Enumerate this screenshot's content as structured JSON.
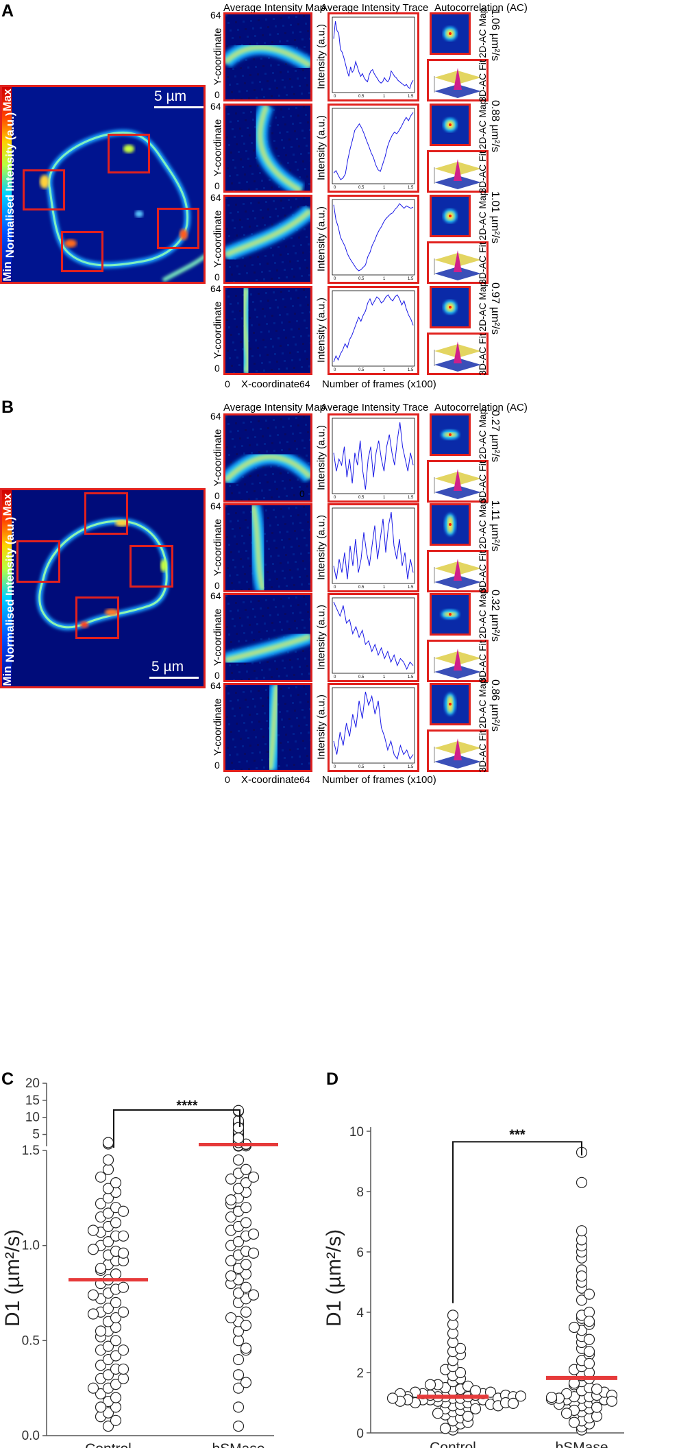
{
  "panels": {
    "A": {
      "letter": "A",
      "scale_label": "5 µm",
      "colorbar": {
        "min": "Min",
        "label": "Normalised Intensity (a.u.)",
        "max": "Max"
      },
      "rows": [
        {
          "diffusion": "1.06 µm²/s",
          "trace": [
            7.9,
            9.2,
            8.5,
            8.3,
            7.1,
            6.9,
            6.5,
            6.0,
            5.5,
            5.1,
            5.8,
            5.4,
            5.6,
            6.2,
            5.8,
            5.4,
            5.1,
            5.3,
            5.0,
            4.8,
            4.7,
            5.2,
            5.5,
            5.6,
            5.3,
            5.1,
            4.9,
            4.7,
            4.6,
            4.7,
            5.0,
            4.8,
            4.7,
            4.9,
            5.5,
            5.3,
            5.1,
            5.0,
            4.8,
            4.7,
            4.6,
            4.5,
            4.4,
            4.5,
            4.3,
            4.2,
            4.6,
            4.8
          ]
        },
        {
          "diffusion": "0.88 µm²/s",
          "trace": [
            9.6,
            9.9,
            9.3,
            8.8,
            9.0,
            9.5,
            11.2,
            12.5,
            13.6,
            14.8,
            15.2,
            15.6,
            15.1,
            14.4,
            13.6,
            12.9,
            12.1,
            11.5,
            10.6,
            10.0,
            9.8,
            10.7,
            11.6,
            12.8,
            13.6,
            14.2,
            14.6,
            14.4,
            14.8,
            15.3,
            15.9,
            16.4,
            16.0,
            16.6,
            17.0
          ]
        },
        {
          "diffusion": "1.01 µm²/s",
          "trace": [
            8.8,
            7.5,
            6.9,
            6.0,
            5.6,
            5.2,
            4.6,
            4.2,
            3.9,
            3.6,
            3.3,
            3.1,
            3.2,
            3.4,
            3.6,
            4.3,
            4.7,
            5.3,
            5.7,
            6.2,
            6.6,
            6.9,
            7.3,
            7.6,
            7.8,
            8.0,
            8.1,
            8.4,
            8.6,
            8.9,
            8.7,
            8.5,
            8.7,
            8.6,
            8.5,
            8.6
          ]
        },
        {
          "diffusion": "0.97 µm²/s",
          "trace": [
            4.5,
            4.8,
            4.6,
            4.9,
            5.1,
            5.4,
            5.2,
            5.6,
            5.8,
            6.1,
            6.4,
            6.7,
            6.5,
            6.8,
            7.0,
            7.4,
            7.6,
            7.3,
            7.5,
            7.7,
            7.6,
            7.4,
            7.5,
            7.7,
            7.8,
            7.6,
            7.5,
            7.7,
            7.8,
            7.6,
            7.3,
            7.5,
            7.1,
            6.8,
            6.6,
            6.3
          ]
        }
      ]
    },
    "B": {
      "letter": "B",
      "scale_label": "5 µm",
      "colorbar": {
        "min": "Min",
        "label": "Normalised Intensity (a.u.)",
        "max": "Max"
      },
      "rows": [
        {
          "diffusion": "0.27 µm²/s",
          "trace": [
            4.1,
            3.8,
            4.0,
            3.9,
            4.2,
            3.7,
            4.0,
            3.6,
            4.1,
            3.9,
            4.3,
            3.8,
            3.5,
            4.0,
            4.2,
            3.7,
            4.1,
            4.3,
            4.0,
            3.8,
            4.2,
            4.4,
            4.1,
            3.9,
            4.3,
            4.6,
            4.2,
            4.0,
            3.8,
            4.1,
            3.9
          ]
        },
        {
          "diffusion": "1.11 µm²/s",
          "trace": [
            3.2,
            3.0,
            3.3,
            3.1,
            3.4,
            3.0,
            3.5,
            3.2,
            3.6,
            3.1,
            3.3,
            3.7,
            3.4,
            3.2,
            3.5,
            3.8,
            3.3,
            3.6,
            3.9,
            3.4,
            3.8,
            4.0,
            3.5,
            3.3,
            3.6,
            3.2,
            3.4,
            3.0,
            3.3,
            3.1
          ]
        },
        {
          "diffusion": "0.32 µm²/s",
          "trace": [
            8.0,
            7.8,
            7.6,
            7.9,
            7.4,
            7.5,
            7.1,
            7.3,
            7.0,
            7.2,
            6.8,
            6.9,
            6.6,
            6.8,
            6.5,
            6.7,
            6.4,
            6.6,
            6.3,
            6.5,
            6.2,
            6.4,
            6.3,
            6.1,
            6.3,
            6.2
          ]
        },
        {
          "diffusion": "0.86 µm²/s",
          "trace": [
            3.3,
            3.0,
            3.5,
            3.2,
            3.7,
            3.4,
            3.9,
            3.6,
            4.2,
            3.8,
            4.4,
            4.1,
            4.3,
            3.9,
            4.2,
            3.6,
            3.4,
            3.1,
            3.3,
            3.0,
            2.9,
            3.2,
            3.0,
            3.1,
            2.9,
            3.0
          ]
        }
      ]
    }
  },
  "column_headers": {
    "map": "Average Intensity Map",
    "trace": "Average Intensity Trace",
    "ac": "Autocorrelation (AC)"
  },
  "axis_labels": {
    "y": "Y-coordinate",
    "x": "X-coordinate",
    "intensity": "Intensity (a.u.)",
    "frames": "Number of frames (x100)",
    "map_max": "64",
    "map_zero": "0",
    "ac_2d": "2D-AC Map",
    "ac_3d": "3D-AC Fit"
  },
  "chart_data": [
    {
      "panel": "C",
      "type": "scatter",
      "categories": [
        "Control",
        "bSMase"
      ],
      "ylabel": "D1 (µm²/s)",
      "axis_break": true,
      "upper_ticks": [
        "5",
        "10",
        "15",
        "20"
      ],
      "lower_ticks": [
        "0.0",
        "0.5",
        "1.0",
        "1.5"
      ],
      "ylim_lower": [
        0,
        1.5
      ],
      "ylim_upper": [
        1.5,
        20
      ],
      "significance": "****",
      "means": [
        0.82,
        2.0
      ],
      "series": [
        {
          "values": [
            0.05,
            0.08,
            0.1,
            0.12,
            0.15,
            0.18,
            0.2,
            0.22,
            0.25,
            0.27,
            0.3,
            0.32,
            0.35,
            0.37,
            0.4,
            0.42,
            0.45,
            0.47,
            0.5,
            0.52,
            0.55,
            0.57,
            0.6,
            0.62,
            0.65,
            0.67,
            0.7,
            0.72,
            0.75,
            0.77,
            0.8,
            0.82,
            0.85,
            0.87,
            0.9,
            0.92,
            0.95,
            0.97,
            1.0,
            1.02,
            1.05,
            1.07,
            1.1,
            1.12,
            1.15,
            1.17,
            1.2,
            1.22,
            1.25,
            1.28,
            1.3,
            1.33,
            1.36,
            1.4,
            1.45,
            0.3,
            0.55,
            0.65,
            0.78,
            0.88,
            0.92,
            0.96,
            1.05,
            0.74,
            0.64,
            0.45,
            0.35,
            0.25,
            0.15,
            1.18,
            1.08,
            0.98,
            2.2,
            2.6
          ]
        },
        {
          "values": [
            0.05,
            0.15,
            0.25,
            0.32,
            0.4,
            0.45,
            0.5,
            0.55,
            0.6,
            0.65,
            0.7,
            0.72,
            0.75,
            0.78,
            0.8,
            0.82,
            0.85,
            0.88,
            0.9,
            0.92,
            0.95,
            0.97,
            1.0,
            1.02,
            1.05,
            1.08,
            1.1,
            1.12,
            1.15,
            1.18,
            1.2,
            1.22,
            1.25,
            1.28,
            1.3,
            1.33,
            1.35,
            1.38,
            1.4,
            1.45,
            1.6,
            1.7,
            1.8,
            1.9,
            2.0,
            2.1,
            2.2,
            2.3,
            2.5,
            2.7,
            2.9,
            3.2,
            3.5,
            3.8,
            4.0,
            4.3,
            4.6,
            5.0,
            5.4,
            5.8,
            6.3,
            6.8,
            7.2,
            7.8,
            8.2,
            9.0,
            11.8,
            12.0,
            0.62,
            0.84,
            1.06,
            1.24,
            1.36,
            0.96,
            0.74,
            0.58,
            0.46,
            0.28,
            1.9,
            2.4,
            3.0,
            4.4,
            5.6,
            6.0,
            7.0,
            1.65,
            1.75,
            2.05,
            2.15,
            2.6,
            3.3,
            3.9
          ]
        }
      ]
    },
    {
      "panel": "D",
      "type": "scatter",
      "categories": [
        "Control",
        "bSMase"
      ],
      "ylabel": "D1 (µm²/s)",
      "ylim": [
        0,
        10
      ],
      "yticks": [
        "0",
        "2",
        "4",
        "6",
        "8",
        "10"
      ],
      "significance": "***",
      "means": [
        1.2,
        1.82
      ],
      "series": [
        {
          "values": [
            0.1,
            0.2,
            0.3,
            0.4,
            0.5,
            0.6,
            0.7,
            0.75,
            0.8,
            0.85,
            0.9,
            0.95,
            1.0,
            1.0,
            1.05,
            1.05,
            1.1,
            1.1,
            1.1,
            1.15,
            1.15,
            1.2,
            1.2,
            1.2,
            1.25,
            1.25,
            1.3,
            1.3,
            1.35,
            1.35,
            1.4,
            1.45,
            1.5,
            1.55,
            1.6,
            1.7,
            1.8,
            1.9,
            2.0,
            2.1,
            2.2,
            2.4,
            2.6,
            2.7,
            2.8,
            3.0,
            3.3,
            3.6,
            3.9,
            0.15,
            0.35,
            0.55,
            0.65,
            0.95,
            1.0,
            1.15,
            1.2,
            1.25,
            1.3,
            1.4,
            0.9,
            1.1,
            1.2,
            0.8,
            1.0,
            1.6,
            1.05,
            1.15,
            0.98,
            1.22
          ]
        },
        {
          "values": [
            0.1,
            0.2,
            0.3,
            0.4,
            0.5,
            0.6,
            0.7,
            0.8,
            0.9,
            1.0,
            1.0,
            1.05,
            1.1,
            1.1,
            1.15,
            1.2,
            1.2,
            1.25,
            1.3,
            1.35,
            1.4,
            1.5,
            1.6,
            1.7,
            1.8,
            1.9,
            2.0,
            2.1,
            2.2,
            2.4,
            2.6,
            2.8,
            3.0,
            3.2,
            3.4,
            3.6,
            3.8,
            3.9,
            4.0,
            4.4,
            4.8,
            5.0,
            5.4,
            5.8,
            6.0,
            6.2,
            6.4,
            6.7,
            8.3,
            9.3,
            0.35,
            0.55,
            0.75,
            0.95,
            1.15,
            1.25,
            1.45,
            1.65,
            2.3,
            2.7,
            3.1,
            3.5,
            3.7,
            4.6,
            5.2,
            1.05,
            1.12,
            1.18,
            0.85,
            0.65
          ]
        }
      ]
    }
  ]
}
